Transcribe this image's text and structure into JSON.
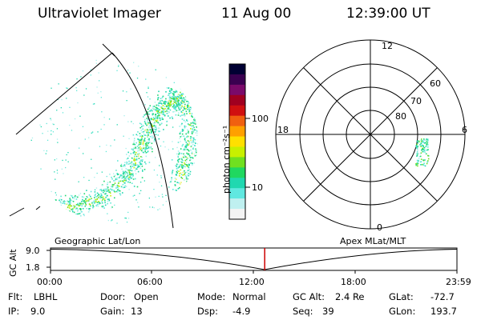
{
  "header": {
    "instrument": "Ultraviolet Imager",
    "date": "11 Aug 00",
    "time": "12:39:00 UT"
  },
  "colorbar": {
    "unit_label": "photon cm⁻²s⁻¹",
    "ticks": [
      "100",
      "10"
    ],
    "colors": [
      "#000033",
      "#3a0050",
      "#7a0a6a",
      "#a00020",
      "#d01010",
      "#f06010",
      "#ffa000",
      "#ffe000",
      "#c8f000",
      "#70e020",
      "#20d860",
      "#20d8b0",
      "#60e8e0",
      "#bff0f0",
      "#f4f4f4"
    ]
  },
  "polar_plot": {
    "ring_labels": [
      "80",
      "70",
      "60"
    ],
    "clock_labels": [
      "12",
      "18",
      "6",
      "0"
    ]
  },
  "timeline": {
    "axis_label": "GC Alt",
    "y_ticks": [
      "9.0",
      "1.8"
    ],
    "left_caption": "Geographic Lat/Lon",
    "right_caption": "Apex  MLat/MLT",
    "x_ticks": [
      "00:00",
      "06:00",
      "12:00",
      "18:00",
      "23:59"
    ],
    "current_time_fraction": 0.527,
    "marker_color": "#cc0000"
  },
  "footer": {
    "row1": [
      {
        "label": "Flt:",
        "value": "LBHL"
      },
      {
        "label": "Door:",
        "value": "Open"
      },
      {
        "label": "Mode:",
        "value": "Normal"
      },
      {
        "label": "GC Alt:",
        "value": "2.4 Re"
      },
      {
        "label": "GLat:",
        "value": "-72.7"
      }
    ],
    "row2": [
      {
        "label": "IP:",
        "value": "9.0"
      },
      {
        "label": "Gain:",
        "value": "13"
      },
      {
        "label": "Dsp:",
        "value": "-4.9"
      },
      {
        "label": "Seq:",
        "value": "39"
      },
      {
        "label": "GLon:",
        "value": "193.7"
      }
    ]
  }
}
